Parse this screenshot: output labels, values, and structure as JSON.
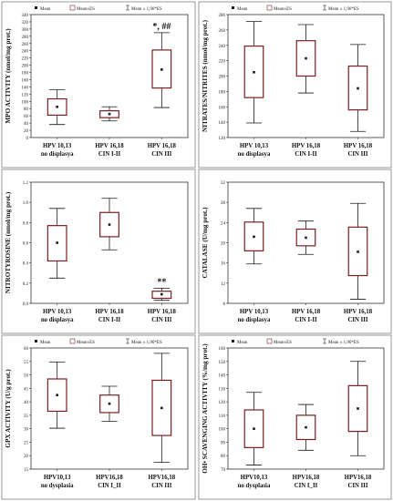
{
  "figure": {
    "colors": {
      "box_stroke": "#7a1f1f",
      "whisker": "#1a1a1a",
      "mean": "#1a1a1a",
      "frame": "#7f7f7f",
      "grid": "#d9d9d9"
    }
  },
  "chart_data": [
    {
      "type": "box",
      "ylabel": "MPO ACTIVITY (nmol/mg prot.)",
      "legend": [
        "Mean",
        "Mean±ES",
        "Mean ± 1,96*ES"
      ],
      "legend_position": "top",
      "ylim": [
        0,
        340
      ],
      "yticks": [
        0,
        20,
        40,
        60,
        80,
        100,
        120,
        140,
        160,
        180,
        200,
        220,
        240,
        260,
        280,
        300,
        320,
        340
      ],
      "categories": [
        [
          "HPV 10,13",
          "no displasya"
        ],
        [
          "HPV 16,18",
          "CIN I-II"
        ],
        [
          "HPV 16,18",
          "CIN III"
        ]
      ],
      "mean": [
        85,
        65,
        188
      ],
      "se_low": [
        62,
        55,
        137
      ],
      "se_high": [
        107,
        74,
        242
      ],
      "ci_low": [
        36,
        46,
        83
      ],
      "ci_high": [
        132,
        85,
        290
      ],
      "annotations": [
        {
          "category": 2,
          "text": "*, ##"
        }
      ]
    },
    {
      "type": "box",
      "ylabel": "NITRATES/NITRITES (nmol/mg prot.)",
      "legend": [
        "Mean",
        "Mean±ES",
        "Mean ± 1,96*ES"
      ],
      "legend_position": "top",
      "ylim": [
        120,
        280
      ],
      "yticks": [
        120,
        140,
        160,
        180,
        200,
        220,
        240,
        260,
        280
      ],
      "categories": [
        [
          "HPV 10,13",
          "no displasya"
        ],
        [
          "HPV 16,18",
          "CIN I-II"
        ],
        [
          "HPV 16,18",
          "CIN III"
        ]
      ],
      "mean": [
        205,
        223,
        184
      ],
      "se_low": [
        172,
        200,
        156
      ],
      "se_high": [
        239,
        246,
        213
      ],
      "ci_low": [
        139,
        178,
        128
      ],
      "ci_high": [
        271,
        267,
        241
      ],
      "annotations": []
    },
    {
      "type": "box",
      "ylabel": "NITROTYROSINE (nmol/mg prot.)",
      "legend": [],
      "legend_position": "",
      "ylim": [
        0.0,
        1.2
      ],
      "yticks": [
        0.0,
        0.2,
        0.4,
        0.6,
        0.8,
        1.0,
        1.2
      ],
      "categories": [
        [
          "HPV 10,13",
          "no displasya"
        ],
        [
          "HPV 16,18",
          "CIN I-II"
        ],
        [
          "HPV 16,18",
          "CIN III"
        ]
      ],
      "mean": [
        0.6,
        0.78,
        0.09
      ],
      "se_low": [
        0.42,
        0.66,
        0.05
      ],
      "se_high": [
        0.77,
        0.9,
        0.12
      ],
      "ci_low": [
        0.25,
        0.53,
        0.03
      ],
      "ci_high": [
        0.94,
        1.04,
        0.15
      ],
      "annotations": [
        {
          "category": 2,
          "text": "**"
        }
      ]
    },
    {
      "type": "box",
      "ylabel": "CATALASE (U/mg prot.)",
      "legend": [],
      "legend_position": "",
      "ylim": [
        8,
        32
      ],
      "yticks": [
        8,
        12,
        16,
        20,
        24,
        28,
        32
      ],
      "categories": [
        [
          "HPV 10,13",
          "no displasya"
        ],
        [
          "HPV 16,18",
          "CIN I-II"
        ],
        [
          "HPV 16,18",
          "CIN III"
        ]
      ],
      "mean": [
        21.2,
        21.0,
        18.2
      ],
      "se_low": [
        18.4,
        19.4,
        13.5
      ],
      "se_high": [
        24.1,
        22.7,
        23.1
      ],
      "ci_low": [
        15.8,
        17.7,
        8.8
      ],
      "ci_high": [
        26.8,
        24.3,
        27.8
      ],
      "annotations": []
    },
    {
      "type": "box",
      "ylabel": "GPX ACTIVITY (U/g prot.)",
      "legend": [
        "Mean",
        "Mean±ES",
        "Mean ± 1,96*ES"
      ],
      "legend_position": "top",
      "ylim": [
        15,
        60
      ],
      "yticks": [
        15,
        20,
        25,
        30,
        35,
        40,
        45,
        50,
        55,
        60
      ],
      "categories": [
        [
          "HPV10,13",
          "no dysplasia"
        ],
        [
          "HPV16,18",
          "CIN I_II"
        ],
        [
          "HPV16,18",
          "CIN III"
        ]
      ],
      "mean": [
        42.5,
        39.3,
        37.7
      ],
      "se_low": [
        36.5,
        36.0,
        27.5
      ],
      "se_high": [
        48.5,
        42.5,
        48.0
      ],
      "ci_low": [
        30.2,
        32.8,
        17.5
      ],
      "ci_high": [
        54.8,
        45.8,
        58.0
      ],
      "annotations": []
    },
    {
      "type": "box",
      "ylabel": "OH• SCAVENGING ACTIVITY (%/mg prot.)",
      "legend": [
        "Mean",
        "Mean±ES",
        "Mean ± 1,96*ES"
      ],
      "legend_position": "top",
      "ylim": [
        70,
        160
      ],
      "yticks": [
        70,
        80,
        90,
        100,
        110,
        120,
        130,
        140,
        150,
        160
      ],
      "categories": [
        [
          "HPV10,13",
          "no dysplasia"
        ],
        [
          "HPV16,18",
          "CIN I_II"
        ],
        [
          "HPV16,18",
          "CIN III"
        ]
      ],
      "mean": [
        100,
        101,
        115
      ],
      "se_low": [
        86,
        92,
        98
      ],
      "se_high": [
        114,
        110,
        132
      ],
      "ci_low": [
        73,
        84,
        80
      ],
      "ci_high": [
        127,
        118,
        150
      ],
      "annotations": []
    }
  ]
}
